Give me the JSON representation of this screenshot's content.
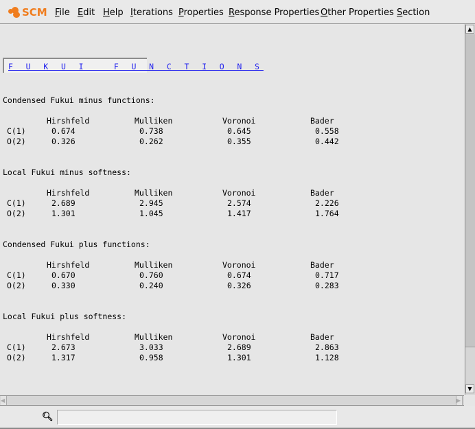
{
  "app": {
    "logo": "SCM"
  },
  "menu": [
    "File",
    "Edit",
    "Help",
    "Iterations",
    "Properties",
    "Response Properties",
    "Other Properties",
    "Section"
  ],
  "link": "FUKUI FUNCTIONS",
  "columns": [
    "Hirshfeld",
    "Mulliken",
    "Voronoi",
    "Bader"
  ],
  "sections": [
    {
      "title": "Condensed Fukui minus functions:",
      "rows": [
        {
          "atom": "C(1)",
          "values": [
            "0.674",
            "0.738",
            "0.645",
            "0.558"
          ]
        },
        {
          "atom": "O(2)",
          "values": [
            "0.326",
            "0.262",
            "0.355",
            "0.442"
          ]
        }
      ]
    },
    {
      "title": "Local Fukui minus softness:",
      "rows": [
        {
          "atom": "C(1)",
          "values": [
            "2.689",
            "2.945",
            "2.574",
            "2.226"
          ]
        },
        {
          "atom": "O(2)",
          "values": [
            "1.301",
            "1.045",
            "1.417",
            "1.764"
          ]
        }
      ]
    },
    {
      "title": "Condensed Fukui plus functions:",
      "rows": [
        {
          "atom": "C(1)",
          "values": [
            "0.670",
            "0.760",
            "0.674",
            "0.717"
          ]
        },
        {
          "atom": "O(2)",
          "values": [
            "0.330",
            "0.240",
            "0.326",
            "0.283"
          ]
        }
      ]
    },
    {
      "title": "Local Fukui plus softness:",
      "rows": [
        {
          "atom": "C(1)",
          "values": [
            "2.673",
            "3.033",
            "2.689",
            "2.863"
          ]
        },
        {
          "atom": "O(2)",
          "values": [
            "1.317",
            "0.958",
            "1.301",
            "1.128"
          ]
        }
      ]
    }
  ],
  "search": {
    "value": ""
  }
}
